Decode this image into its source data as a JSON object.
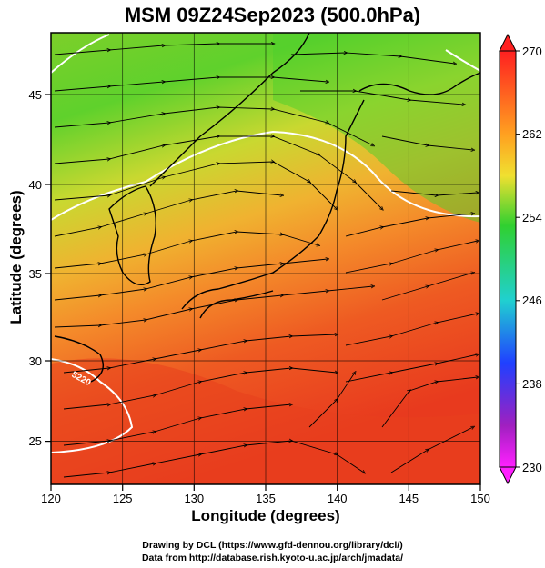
{
  "title": "MSM 09Z24Sep2023 (500.0hPa)",
  "axes": {
    "xlabel": "Longitude (degrees)",
    "ylabel": "Latitude  (degrees)",
    "x_ticks": [
      "120",
      "125",
      "130",
      "135",
      "140",
      "145",
      "150"
    ],
    "y_ticks": [
      "25",
      "30",
      "35",
      "40",
      "45"
    ],
    "x_range": [
      120,
      150
    ],
    "y_range": [
      22.4,
      47.6
    ]
  },
  "colorbar": {
    "ticks": [
      "270",
      "262",
      "254",
      "246",
      "238",
      "230"
    ],
    "range": [
      230,
      270
    ],
    "colors": [
      "#ff2020",
      "#ffa020",
      "#f0e030",
      "#30d030",
      "#20d0d0",
      "#2040ff",
      "#a020c0",
      "#ff20ff"
    ]
  },
  "contour_label": "5220",
  "credits": [
    "Drawing by DCL (https://www.gfd-dennou.org/library/dcl/)",
    "Data from http://database.rish.kyoto-u.ac.jp/arch/jmadata/"
  ]
}
